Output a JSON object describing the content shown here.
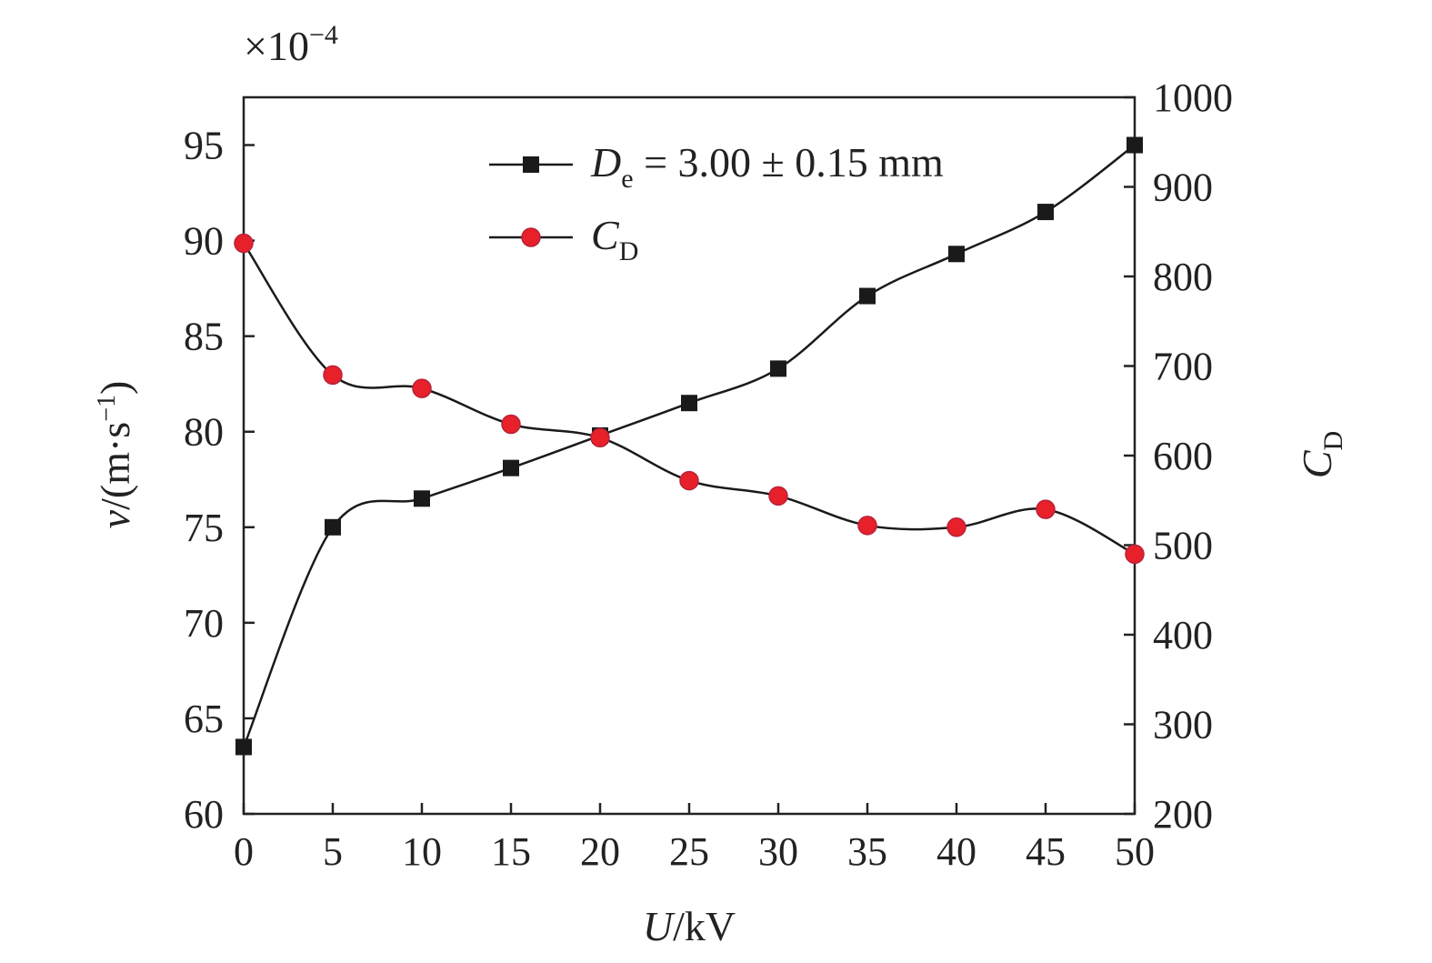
{
  "chart_data": {
    "type": "line",
    "x_axis": {
      "label_var": "U",
      "label_unit": "/kV",
      "range": [
        0,
        50
      ],
      "ticks": [
        0,
        5,
        10,
        15,
        20,
        25,
        30,
        35,
        40,
        45,
        50
      ],
      "tick_labels": [
        "0",
        "5",
        "10",
        "15",
        "20",
        "25",
        "30",
        "35",
        "40",
        "45",
        "50"
      ]
    },
    "y_left": {
      "label_var": "v",
      "label_open": "/(m·s",
      "label_sup": "−1",
      "label_close": ")",
      "multiplier_base": "×10",
      "multiplier_exp": "−4",
      "range": [
        60,
        97.5
      ],
      "ticks": [
        60,
        65,
        70,
        75,
        80,
        85,
        90,
        95
      ],
      "tick_labels": [
        "60",
        "65",
        "70",
        "75",
        "80",
        "85",
        "90",
        "95"
      ]
    },
    "y_right": {
      "label_var": "C",
      "label_sub": "D",
      "range": [
        200,
        1000
      ],
      "ticks": [
        200,
        300,
        400,
        500,
        600,
        700,
        800,
        900,
        1000
      ],
      "tick_labels": [
        "200",
        "300",
        "400",
        "500",
        "600",
        "700",
        "800",
        "900",
        "1000"
      ]
    },
    "x": [
      0,
      5,
      10,
      15,
      20,
      25,
      30,
      35,
      40,
      45,
      50
    ],
    "series": [
      {
        "name_var": "D",
        "name_sub": "e",
        "name_rest": " = 3.00 ± 0.15 mm",
        "axis": "left",
        "marker": "square",
        "color": "#1a1a1a",
        "values": [
          63.5,
          75.0,
          76.5,
          78.1,
          79.8,
          81.5,
          83.3,
          87.1,
          89.3,
          91.5,
          95.0
        ]
      },
      {
        "name_var": "C",
        "name_sub": "D",
        "name_rest": "",
        "axis": "right",
        "marker": "circle",
        "color": "#e8202a",
        "values": [
          837,
          690,
          675,
          635,
          620,
          572,
          555,
          522,
          520,
          540,
          490
        ]
      }
    ],
    "legend_position": "top-center",
    "grid": false
  }
}
